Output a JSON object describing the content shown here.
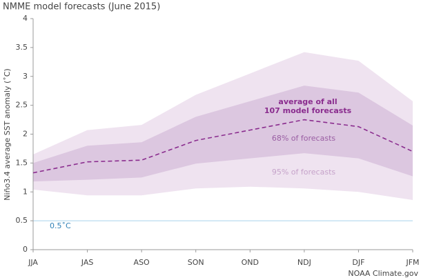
{
  "chart_data": {
    "type": "line",
    "title": "NMME model forecasts (June 2015)",
    "y_label": "Niño3.4 average SST anomaly (˚C)",
    "credit": "NOAA Climate.gov",
    "categories": [
      "JJA",
      "JAS",
      "ASO",
      "SON",
      "OND",
      "NDJ",
      "DJF",
      "JFM"
    ],
    "ylim": [
      0,
      4
    ],
    "yticks": [
      0,
      0.5,
      1,
      1.5,
      2,
      2.5,
      3,
      3.5,
      4
    ],
    "bands": [
      {
        "name": "95% of forecasts",
        "color": "#efe3f0",
        "label_color": "#c6a3ca",
        "upper": [
          1.65,
          2.07,
          2.16,
          2.68,
          3.05,
          3.42,
          3.27,
          2.57
        ],
        "lower": [
          1.04,
          0.94,
          0.94,
          1.06,
          1.09,
          1.06,
          1.0,
          0.86
        ]
      },
      {
        "name": "68% of forecasts",
        "color": "#dcc7e0",
        "label_color": "#9a5ea3",
        "upper": [
          1.5,
          1.8,
          1.86,
          2.3,
          2.57,
          2.84,
          2.72,
          2.15
        ],
        "lower": [
          1.18,
          1.21,
          1.25,
          1.49,
          1.58,
          1.67,
          1.58,
          1.27
        ]
      }
    ],
    "series": [
      {
        "name": [
          "average of all",
          "107 model forecasts"
        ],
        "color": "#8a2c8e",
        "values": [
          1.33,
          1.52,
          1.55,
          1.89,
          2.07,
          2.25,
          2.13,
          1.7
        ]
      }
    ],
    "reference_lines": [
      {
        "value": 0.5,
        "label": "0.5˚C",
        "color": "#a9d3ec",
        "label_color": "#2f80b6"
      }
    ]
  }
}
